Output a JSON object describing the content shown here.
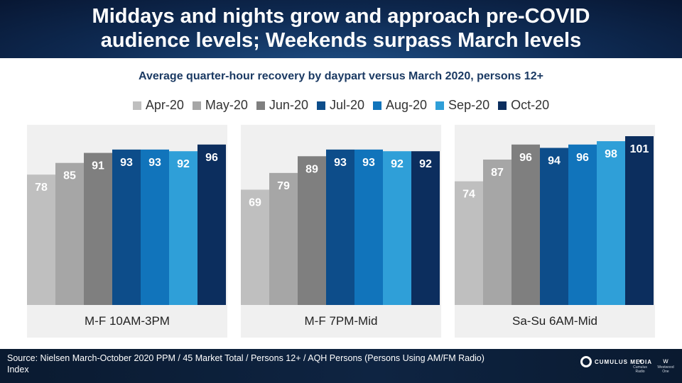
{
  "header": {
    "title": "Middays and nights grow and approach pre-COVID\naudience levels; Weekends surpass March levels"
  },
  "footer": {
    "source": "Source: Nielsen March-October 2020 PPM / 45 Market Total / Persons 12+ / AQH Persons (Persons Using AM/FM Radio) Index",
    "logos": {
      "main": "CUMULUS MEDIA",
      "secondary1": "Cumulus Radio",
      "secondary2": "Westwood One"
    }
  },
  "chart_data": {
    "type": "bar",
    "title": "Average quarter-hour recovery by daypart versus March 2020, persons 12+",
    "categories": [
      "M-F 10AM-3PM",
      "M-F 7PM-Mid",
      "Sa-Su 6AM-Mid"
    ],
    "series": [
      {
        "name": "Apr-20",
        "color": "#bfbfbf",
        "values": [
          78,
          69,
          74
        ]
      },
      {
        "name": "May-20",
        "color": "#a6a6a6",
        "values": [
          85,
          79,
          87
        ]
      },
      {
        "name": "Jun-20",
        "color": "#7f7f7f",
        "values": [
          91,
          89,
          96
        ]
      },
      {
        "name": "Jul-20",
        "color": "#0d4d8a",
        "values": [
          93,
          93,
          94
        ]
      },
      {
        "name": "Aug-20",
        "color": "#1174bb",
        "values": [
          93,
          93,
          96
        ]
      },
      {
        "name": "Sep-20",
        "color": "#2f9fd8",
        "values": [
          92,
          92,
          98
        ]
      },
      {
        "name": "Oct-20",
        "color": "#0c2e5e",
        "values": [
          96,
          92,
          101
        ]
      }
    ],
    "ylim": [
      0,
      101
    ],
    "grid": false,
    "legend": "top-center",
    "panel_color": "#f0f0f0"
  }
}
